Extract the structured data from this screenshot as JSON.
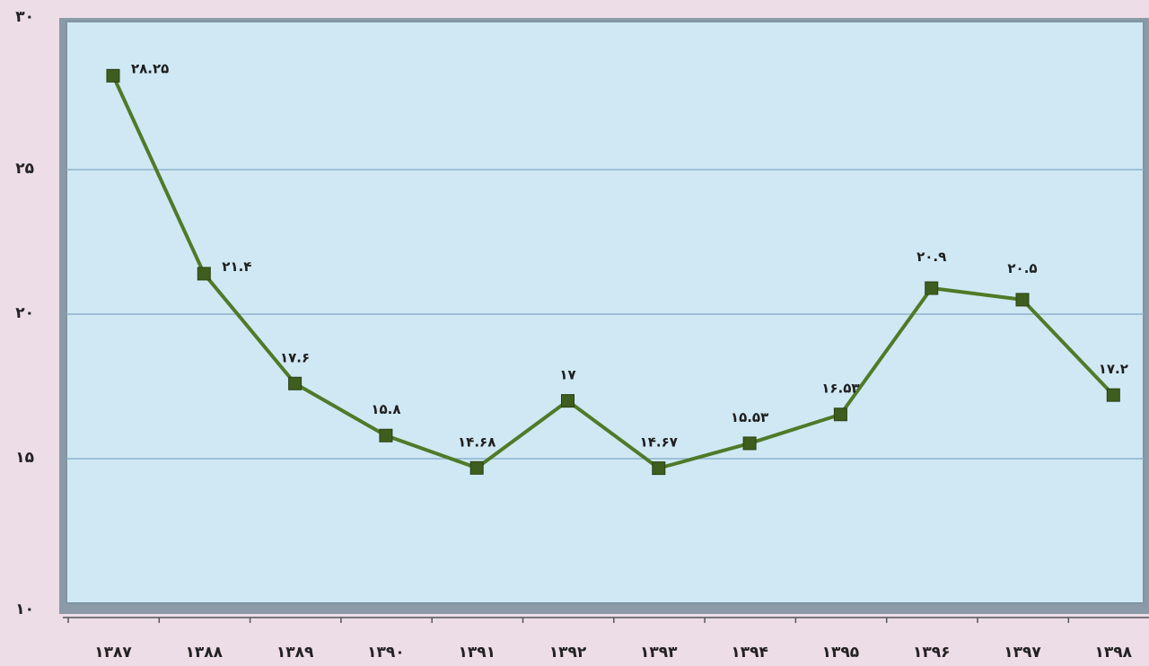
{
  "chart_data": {
    "type": "line",
    "title": "",
    "xlabel": "",
    "ylabel": "",
    "ylim": [
      10,
      30
    ],
    "yticks": [
      10,
      15,
      20,
      25,
      30
    ],
    "ytick_labels": [
      "۱۰",
      "۱۵",
      "۲۰",
      "۲۵",
      "۳۰"
    ],
    "grid": true,
    "categories": [
      "۱۳۸۷",
      "۱۳۸۸",
      "۱۳۸۹",
      "۱۳۹۰",
      "۱۳۹۱",
      "۱۳۹۲",
      "۱۳۹۳",
      "۱۳۹۴",
      "۱۳۹۵",
      "۱۳۹۶",
      "۱۳۹۷",
      "۱۳۹۸"
    ],
    "series": [
      {
        "values": [
          28.25,
          21.4,
          17.6,
          15.8,
          14.68,
          17,
          14.67,
          15.53,
          16.53,
          20.9,
          20.5,
          17.2
        ],
        "labels": [
          "۲۸.۲۵",
          "۲۱.۴",
          "۱۷.۶",
          "۱۵.۸",
          "۱۴.۶۸",
          "۱۷",
          "۱۴.۶۷",
          "۱۵.۵۳",
          "۱۶.۵۳",
          "۲۰.۹",
          "۲۰.۵",
          "۱۷.۲"
        ],
        "color": "#4f7a28",
        "marker_color": "#3d5e1e"
      }
    ],
    "colors": {
      "plot_bg": "#cfe8f4",
      "plot_border": "#7f95a3",
      "gridline": "#8fb1cc",
      "page_bg": "#eddde6"
    }
  }
}
